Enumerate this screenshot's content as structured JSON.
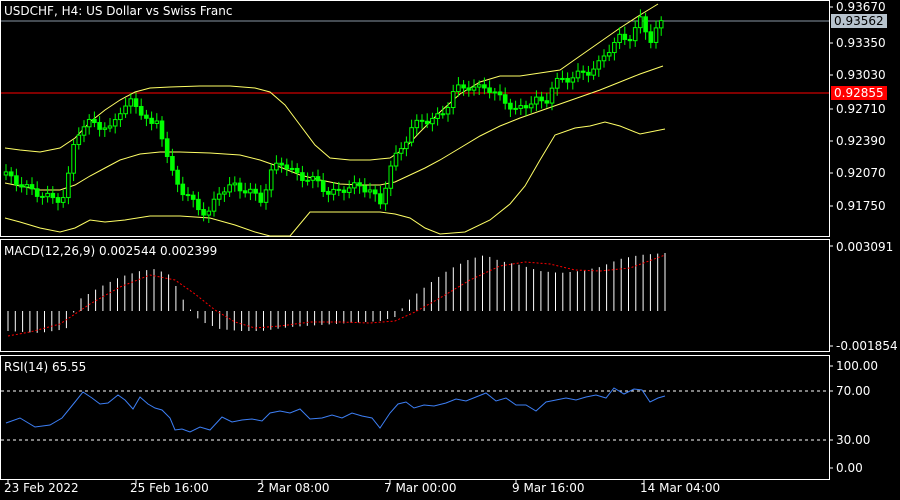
{
  "main_pane": {
    "title": "USDCHF, H4:  US Dollar vs Swiss Franc",
    "price_labels": [
      "0.93670",
      "0.93350",
      "0.93030",
      "0.92710",
      "0.92390",
      "0.92070",
      "0.91750"
    ],
    "bid_tag": "0.93562",
    "level_tag": "0.92855",
    "colors": {
      "candles": "#00ff00",
      "bands": "#ffff66",
      "level": "#ff0000",
      "bid_line": "#8896a4"
    }
  },
  "macd_pane": {
    "title": "MACD(12,26,9) 0.002544 0.002399",
    "top_label": "0.003091",
    "bottom_label": "-0.001854",
    "colors": {
      "histogram": "#ffffff",
      "signal": "#ff0000"
    }
  },
  "rsi_pane": {
    "title": "RSI(14) 65.55",
    "labels": [
      "100.00",
      "70.00",
      "30.00",
      "0.00"
    ],
    "colors": {
      "line": "#3d7ff5",
      "levels": "#ffffff"
    }
  },
  "time_axis": [
    "23 Feb 2022",
    "25 Feb 16:00",
    "2 Mar 08:00",
    "7 Mar 00:00",
    "9 Mar 16:00",
    "14 Mar 04:00"
  ]
}
